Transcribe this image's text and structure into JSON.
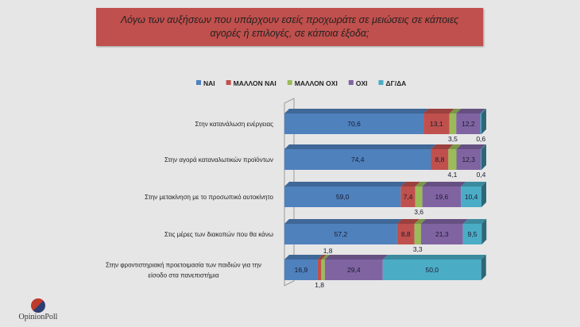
{
  "chart_data": {
    "type": "bar",
    "stacked": true,
    "orientation": "horizontal",
    "title": "Λόγω των αυξήσεων που υπάρχουν εσείς προχωράτε σε μειώσεις σε κάποιες αγορές ή επιλογές, σε κάποια έξοδα;",
    "categories": [
      "Στην κατανάλωση ενέργειας",
      "Στην αγορά καταναλωτικών προϊόντων",
      "Στην μετακίνηση με το προσωπικό αυτοκίνητο",
      "Στις μέρες των διακοπών που θα κάνω",
      "Στην φροντιστηριακή προετοιμασία των παιδιών για την είσοδο στα πανεπιστήμια"
    ],
    "series": [
      {
        "name": "ΝΑΙ",
        "color": "#4f81bd",
        "values": [
          70.6,
          74.4,
          59.0,
          57.2,
          16.9
        ]
      },
      {
        "name": "ΜΑΛΛΟΝ ΝΑΙ",
        "color": "#c0504d",
        "values": [
          13.1,
          8.8,
          7.4,
          8.8,
          1.8
        ]
      },
      {
        "name": "ΜΑΛΛΟΝ ΟΧΙ",
        "color": "#9bbb59",
        "values": [
          3.5,
          4.1,
          3.6,
          3.3,
          1.8
        ]
      },
      {
        "name": "ΟΧΙ",
        "color": "#8064a2",
        "values": [
          12.2,
          12.3,
          19.6,
          21.3,
          29.4
        ]
      },
      {
        "name": "ΔΓ/ΔΑ",
        "color": "#4bacc6",
        "values": [
          0.6,
          0.4,
          10.4,
          9.5,
          50.0
        ]
      }
    ],
    "labels": [
      [
        "70,6",
        "13,1",
        "3,5",
        "12,2",
        "0,6"
      ],
      [
        "74,4",
        "8,8",
        "4,1",
        "12,3",
        "0,4"
      ],
      [
        "59,0",
        "7,4",
        "3,6",
        "19,6",
        "10,4"
      ],
      [
        "57,2",
        "8,8",
        "3,3",
        "21,3",
        "9,5"
      ],
      [
        "16,9",
        "1,8",
        "1,8",
        "29,4",
        "50,0"
      ]
    ],
    "legend": "top",
    "xlim": [
      0,
      100
    ]
  },
  "logo": "OpinionPoll"
}
